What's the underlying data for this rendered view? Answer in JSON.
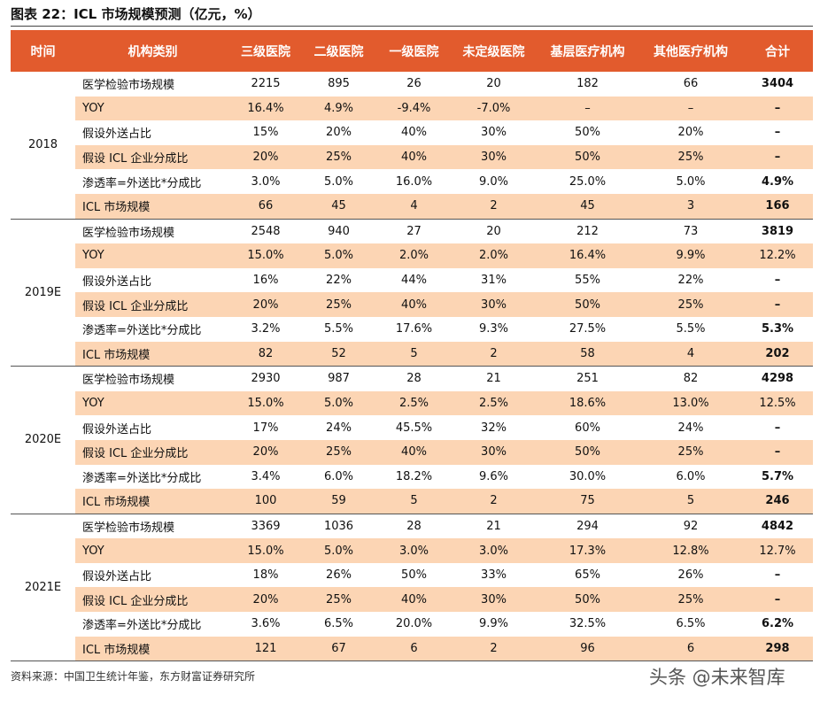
{
  "title": "图表 22：ICL 市场规模预测（亿元，%）",
  "table": {
    "header": [
      "时间",
      "机构类别",
      "三级医院",
      "二级医院",
      "一级医院",
      "未定级医院",
      "基层医疗机构",
      "其他医疗机构",
      "合计"
    ],
    "groups": [
      {
        "year": "2018",
        "rows": [
          [
            "医学检验市场规模",
            "2215",
            "895",
            "26",
            "20",
            "182",
            "66",
            "3404"
          ],
          [
            "YOY",
            "16.4%",
            "4.9%",
            "-9.4%",
            "-7.0%",
            "–",
            "–",
            "–"
          ],
          [
            "假设外送占比",
            "15%",
            "20%",
            "40%",
            "30%",
            "50%",
            "20%",
            "–"
          ],
          [
            "假设 ICL 企业分成比",
            "20%",
            "25%",
            "40%",
            "30%",
            "50%",
            "25%",
            "–"
          ],
          [
            "渗透率=外送比*分成比",
            "3.0%",
            "5.0%",
            "16.0%",
            "9.0%",
            "25.0%",
            "5.0%",
            "4.9%"
          ],
          [
            "ICL 市场规模",
            "66",
            "45",
            "4",
            "2",
            "45",
            "3",
            "166"
          ]
        ]
      },
      {
        "year": "2019E",
        "rows": [
          [
            "医学检验市场规模",
            "2548",
            "940",
            "27",
            "20",
            "212",
            "73",
            "3819"
          ],
          [
            "YOY",
            "15.0%",
            "5.0%",
            "2.0%",
            "2.0%",
            "16.4%",
            "9.9%",
            "12.2%"
          ],
          [
            "假设外送占比",
            "16%",
            "22%",
            "44%",
            "31%",
            "55%",
            "22%",
            "–"
          ],
          [
            "假设 ICL 企业分成比",
            "20%",
            "25%",
            "40%",
            "30%",
            "50%",
            "25%",
            "–"
          ],
          [
            "渗透率=外送比*分成比",
            "3.2%",
            "5.5%",
            "17.6%",
            "9.3%",
            "27.5%",
            "5.5%",
            "5.3%"
          ],
          [
            "ICL 市场规模",
            "82",
            "52",
            "5",
            "2",
            "58",
            "4",
            "202"
          ]
        ]
      },
      {
        "year": "2020E",
        "rows": [
          [
            "医学检验市场规模",
            "2930",
            "987",
            "28",
            "21",
            "251",
            "82",
            "4298"
          ],
          [
            "YOY",
            "15.0%",
            "5.0%",
            "2.5%",
            "2.5%",
            "18.6%",
            "13.0%",
            "12.5%"
          ],
          [
            "假设外送占比",
            "17%",
            "24%",
            "45.5%",
            "32%",
            "60%",
            "24%",
            "–"
          ],
          [
            "假设 ICL 企业分成比",
            "20%",
            "25%",
            "40%",
            "30%",
            "50%",
            "25%",
            "–"
          ],
          [
            "渗透率=外送比*分成比",
            "3.4%",
            "6.0%",
            "18.2%",
            "9.6%",
            "30.0%",
            "6.0%",
            "5.7%"
          ],
          [
            "ICL 市场规模",
            "100",
            "59",
            "5",
            "2",
            "75",
            "5",
            "246"
          ]
        ]
      },
      {
        "year": "2021E",
        "rows": [
          [
            "医学检验市场规模",
            "3369",
            "1036",
            "28",
            "21",
            "294",
            "92",
            "4842"
          ],
          [
            "YOY",
            "15.0%",
            "5.0%",
            "3.0%",
            "3.0%",
            "17.3%",
            "12.8%",
            "12.7%"
          ],
          [
            "假设外送占比",
            "18%",
            "26%",
            "50%",
            "33%",
            "65%",
            "26%",
            "–"
          ],
          [
            "假设 ICL 企业分成比",
            "20%",
            "25%",
            "40%",
            "30%",
            "50%",
            "25%",
            "–"
          ],
          [
            "渗透率=外送比*分成比",
            "3.6%",
            "6.5%",
            "20.0%",
            "9.9%",
            "32.5%",
            "6.5%",
            "6.2%"
          ],
          [
            "ICL 市场规模",
            "121",
            "67",
            "6",
            "2",
            "96",
            "6",
            "298"
          ]
        ]
      }
    ]
  },
  "source": "资料来源：中国卫生统计年鉴，东方财富证券研究所",
  "watermark": "头条 @未来智库"
}
